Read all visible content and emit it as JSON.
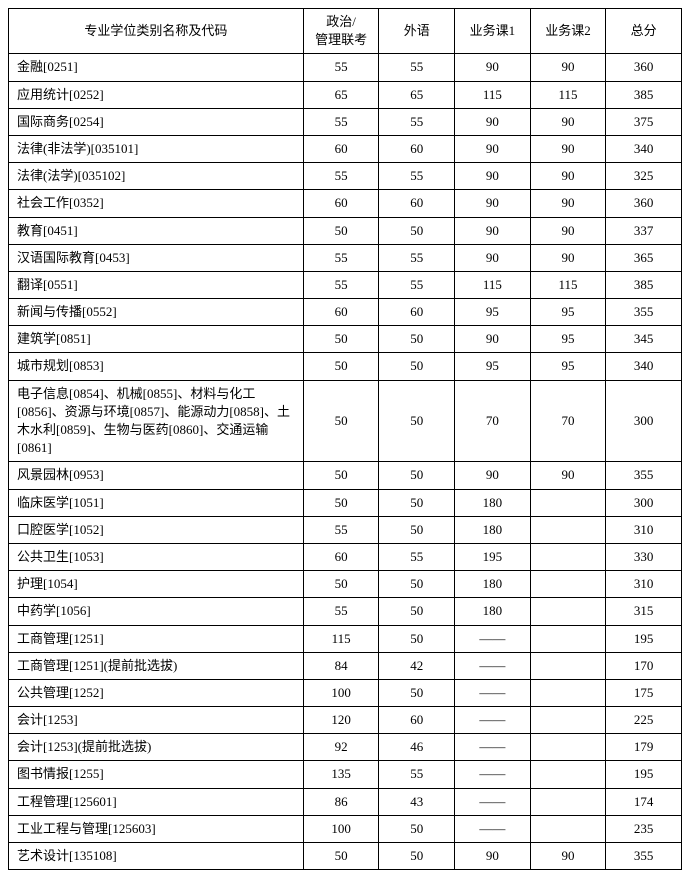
{
  "table": {
    "columns": [
      "专业学位类别名称及代码",
      "政治/\n管理联考",
      "外语",
      "业务课1",
      "业务课2",
      "总分"
    ],
    "rows": [
      [
        "金融[0251]",
        "55",
        "55",
        "90",
        "90",
        "360"
      ],
      [
        "应用统计[0252]",
        "65",
        "65",
        "115",
        "115",
        "385"
      ],
      [
        "国际商务[0254]",
        "55",
        "55",
        "90",
        "90",
        "375"
      ],
      [
        "法律(非法学)[035101]",
        "60",
        "60",
        "90",
        "90",
        "340"
      ],
      [
        "法律(法学)[035102]",
        "55",
        "55",
        "90",
        "90",
        "325"
      ],
      [
        "社会工作[0352]",
        "60",
        "60",
        "90",
        "90",
        "360"
      ],
      [
        "教育[0451]",
        "50",
        "50",
        "90",
        "90",
        "337"
      ],
      [
        "汉语国际教育[0453]",
        "55",
        "55",
        "90",
        "90",
        "365"
      ],
      [
        "翻译[0551]",
        "55",
        "55",
        "115",
        "115",
        "385"
      ],
      [
        "新闻与传播[0552]",
        "60",
        "60",
        "95",
        "95",
        "355"
      ],
      [
        "建筑学[0851]",
        "50",
        "50",
        "90",
        "95",
        "345"
      ],
      [
        "城市规划[0853]",
        "50",
        "50",
        "95",
        "95",
        "340"
      ],
      [
        "电子信息[0854]、机械[0855]、材料与化工[0856]、资源与环境[0857]、能源动力[0858]、土木水利[0859]、生物与医药[0860]、交通运输[0861]",
        "50",
        "50",
        "70",
        "70",
        "300"
      ],
      [
        "风景园林[0953]",
        "50",
        "50",
        "90",
        "90",
        "355"
      ],
      [
        "临床医学[1051]",
        "50",
        "50",
        "180",
        "",
        "300"
      ],
      [
        "口腔医学[1052]",
        "55",
        "50",
        "180",
        "",
        "310"
      ],
      [
        "公共卫生[1053]",
        "60",
        "55",
        "195",
        "",
        "330"
      ],
      [
        "护理[1054]",
        "50",
        "50",
        "180",
        "",
        "310"
      ],
      [
        "中药学[1056]",
        "55",
        "50",
        "180",
        "",
        "315"
      ],
      [
        "工商管理[1251]",
        "115",
        "50",
        "——",
        "",
        "195"
      ],
      [
        "工商管理[1251](提前批选拔)",
        "84",
        "42",
        "——",
        "",
        "170"
      ],
      [
        "公共管理[1252]",
        "100",
        "50",
        "——",
        "",
        "175"
      ],
      [
        "会计[1253]",
        "120",
        "60",
        "——",
        "",
        "225"
      ],
      [
        "会计[1253](提前批选拔)",
        "92",
        "46",
        "——",
        "",
        "179"
      ],
      [
        "图书情报[1255]",
        "135",
        "55",
        "——",
        "",
        "195"
      ],
      [
        "工程管理[125601]",
        "86",
        "43",
        "——",
        "",
        "174"
      ],
      [
        "工业工程与管理[125603]",
        "100",
        "50",
        "——",
        "",
        "235"
      ],
      [
        "艺术设计[135108]",
        "50",
        "50",
        "90",
        "90",
        "355"
      ]
    ]
  }
}
